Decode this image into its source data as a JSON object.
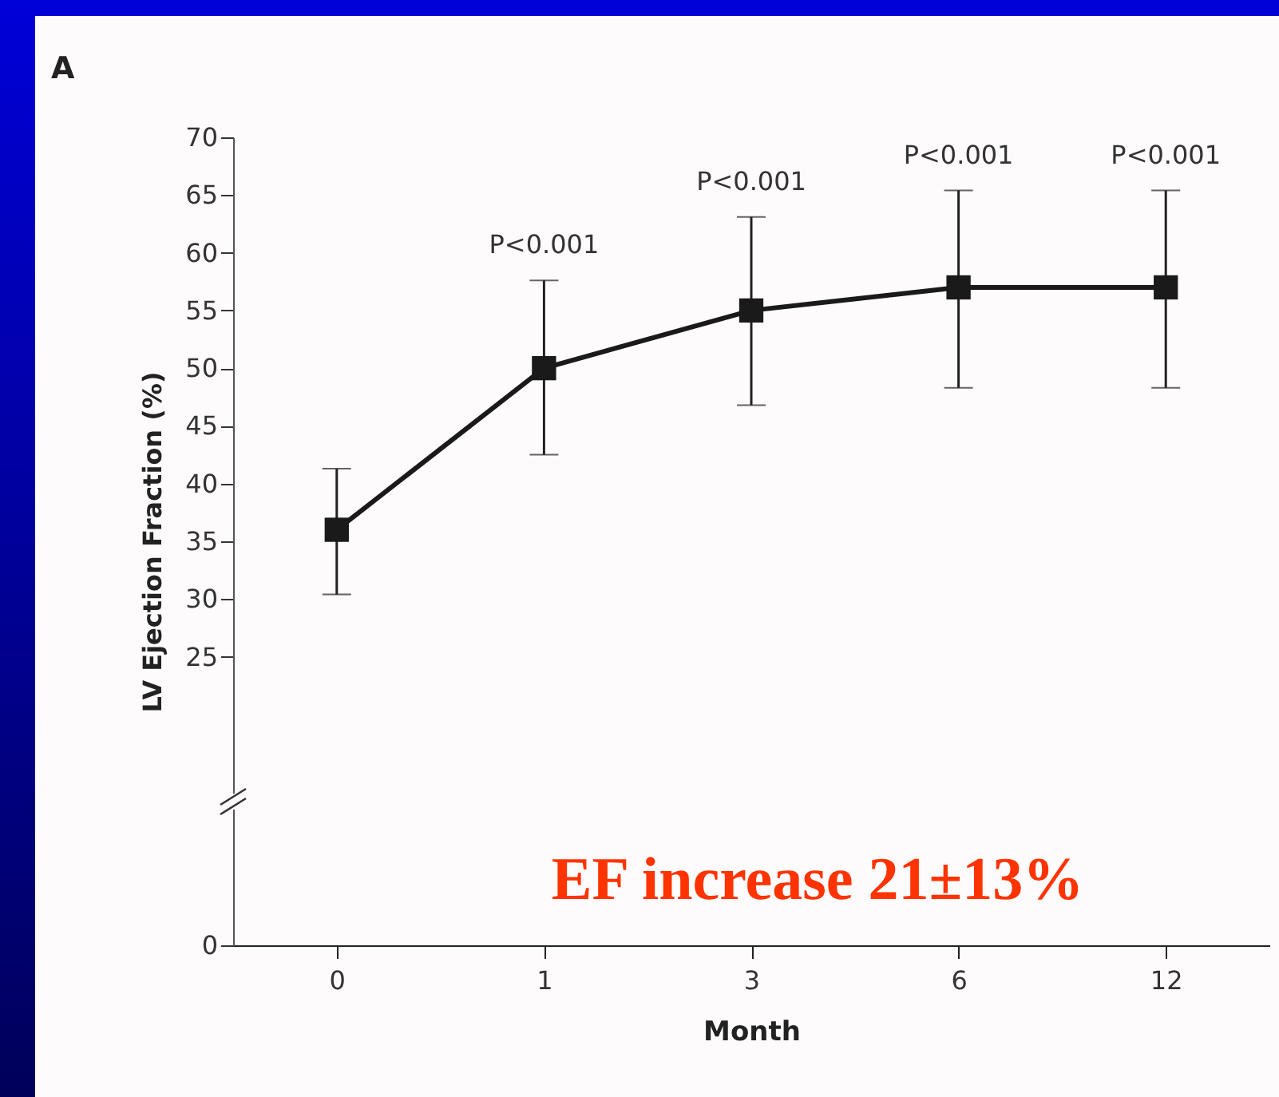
{
  "chart_data": {
    "type": "line",
    "title": "A",
    "xlabel": "Month",
    "ylabel": "LV Ejection Fraction (%)",
    "categories": [
      "0",
      "1",
      "3",
      "6",
      "12"
    ],
    "series": [
      {
        "color": "#1a1a1a",
        "values": [
          36,
          50,
          55,
          57,
          57
        ],
        "errors": [
          [
            30.4,
            41.3
          ],
          [
            42.5,
            57.6
          ],
          [
            46.8,
            63.1
          ],
          [
            48.3,
            65.4
          ],
          [
            48.3,
            65.4
          ]
        ]
      }
    ],
    "ylim": [
      0,
      70
    ],
    "yticks": [
      0,
      25,
      30,
      35,
      40,
      45,
      50,
      55,
      60,
      65,
      70
    ],
    "marker": "square",
    "line_style": "solid",
    "grid": false,
    "annotations": [
      {
        "text": "P<0.001",
        "x": "1",
        "y": 57.6
      },
      {
        "text": "P<0.001",
        "x": "3",
        "y": 63.1
      },
      {
        "text": "P<0.001",
        "x": "6",
        "y": 65.4
      },
      {
        "text": "P<0.001",
        "x": "12",
        "y": 65.4
      },
      "EF increase 21±13%"
    ]
  }
}
